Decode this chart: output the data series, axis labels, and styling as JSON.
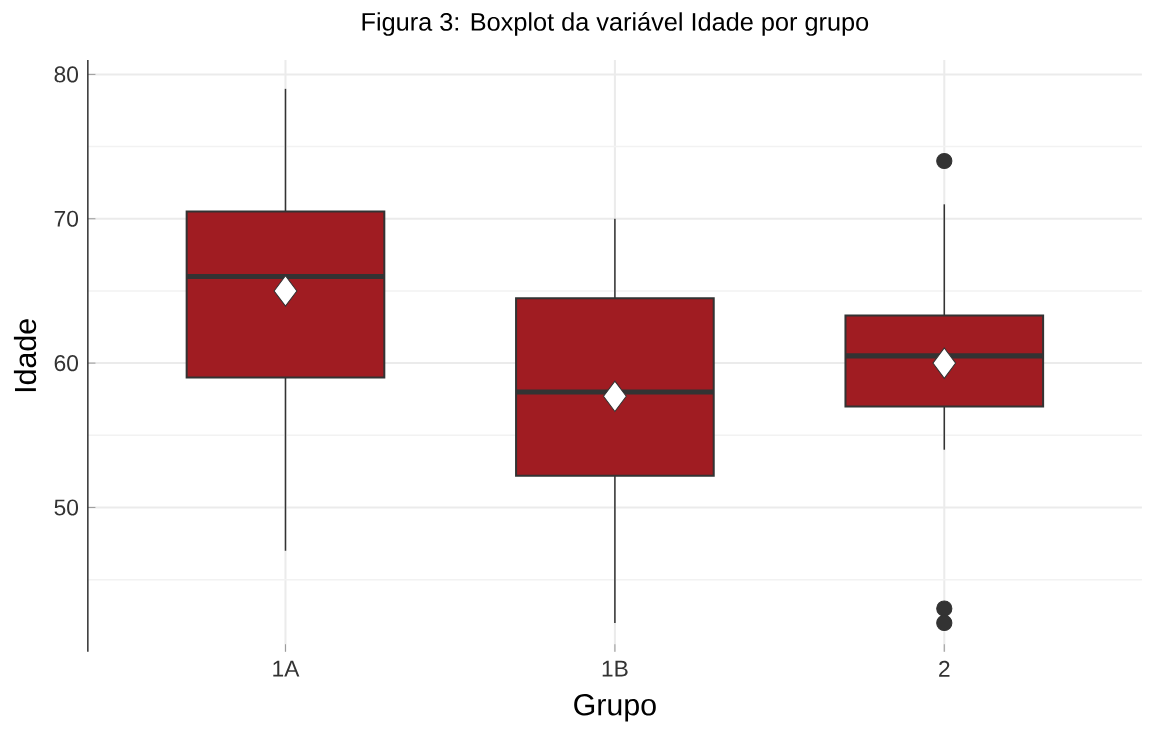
{
  "chart_data": {
    "type": "box",
    "title": "Figura 3: Boxplot da variável Idade por grupo",
    "xlabel": "Grupo",
    "ylabel": "Idade",
    "categories": [
      "1A",
      "1B",
      "2"
    ],
    "boxes": [
      {
        "low": 47,
        "q1": 59,
        "median": 66,
        "q3": 70.5,
        "high": 79,
        "mean": 65
      },
      {
        "low": 42,
        "q1": 52.2,
        "median": 58,
        "q3": 64.5,
        "high": 70,
        "mean": 57.7
      },
      {
        "low": 54,
        "q1": 57,
        "median": 60.5,
        "q3": 63.3,
        "high": 71,
        "mean": 60,
        "outliers": [
          74,
          43,
          42
        ]
      }
    ],
    "color": "#a01c22",
    "ylim": [
      40,
      81
    ],
    "yticks": [
      50,
      60,
      70,
      80
    ],
    "grid": true,
    "marker": "diamond"
  }
}
